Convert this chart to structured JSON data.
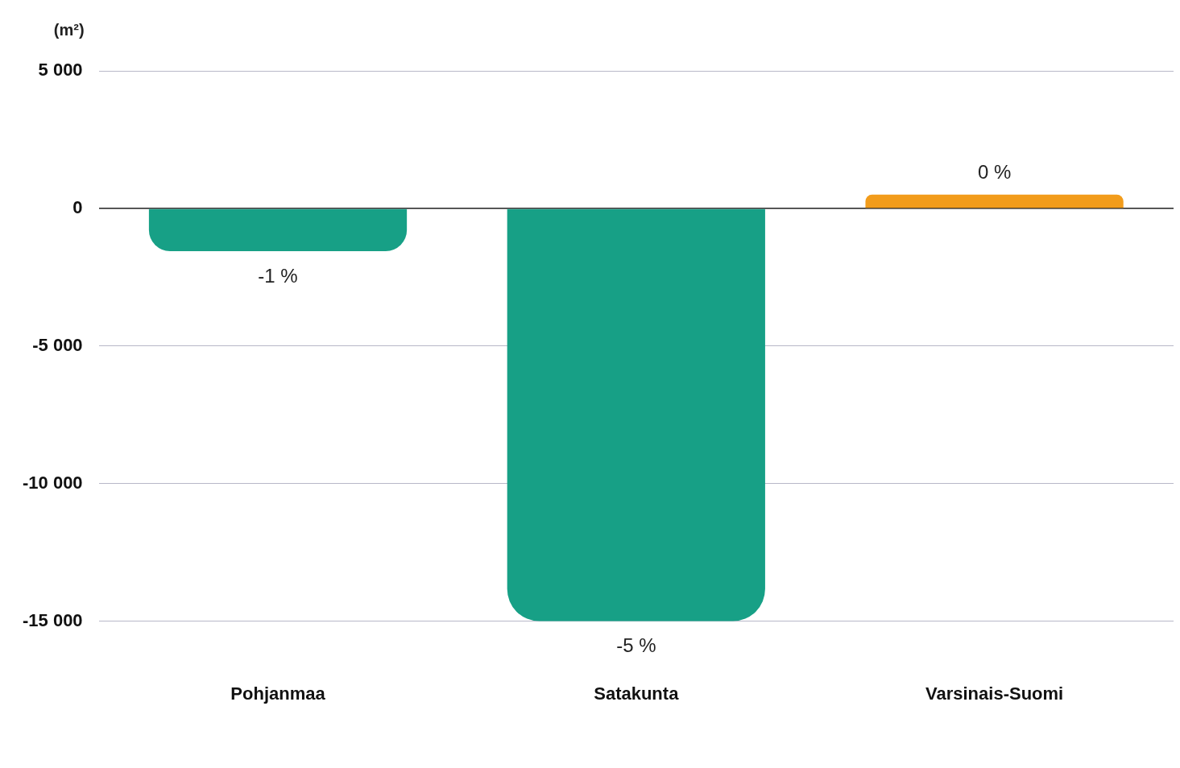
{
  "chart_data": {
    "type": "bar",
    "ylabel": "(m²)",
    "categories": [
      "Pohjanmaa",
      "Satakunta",
      "Varsinais-Suomi"
    ],
    "values": [
      -1550,
      -15000,
      500
    ],
    "colors": [
      "#17a086",
      "#17a086",
      "#f29c1b"
    ],
    "annotations": [
      {
        "text": "-1 %",
        "x": "Pohjanmaa",
        "y": -1550
      },
      {
        "text": "-5 %",
        "x": "Satakunta",
        "y": -15000
      },
      {
        "text": "0 %",
        "x": "Varsinais-Suomi",
        "y": 500
      }
    ],
    "ylim": [
      -15000,
      5000
    ],
    "yticks": [
      {
        "value": 5000,
        "label": "5 000"
      },
      0,
      {
        "value": -5000,
        "label": "-5 000"
      },
      {
        "value": -10000,
        "label": "-10 000"
      },
      {
        "value": -15000,
        "label": "-15 000"
      }
    ],
    "grid": "y"
  }
}
